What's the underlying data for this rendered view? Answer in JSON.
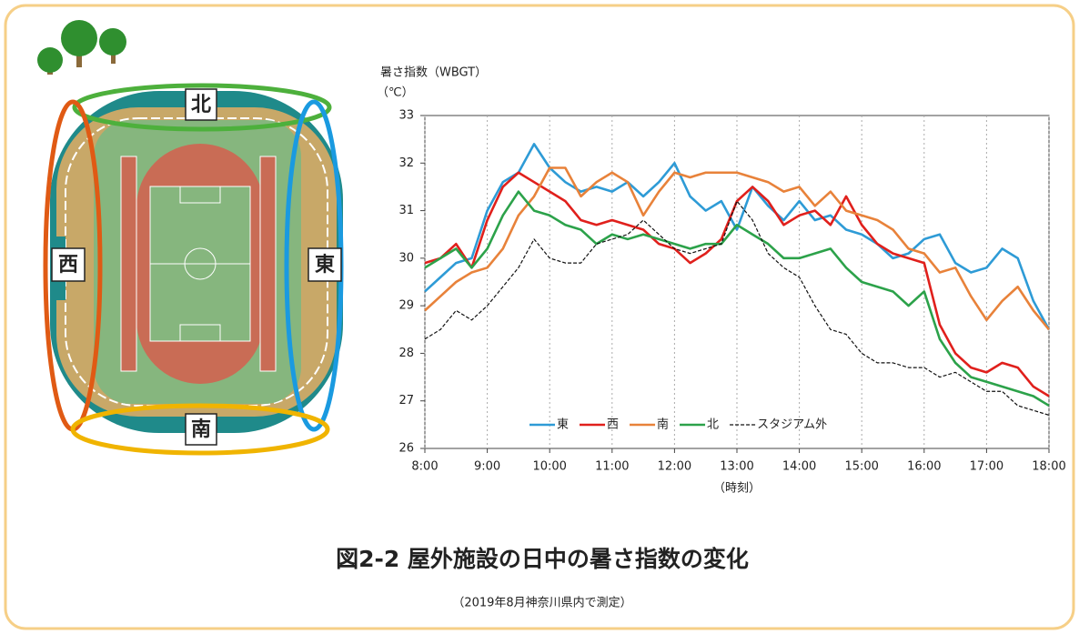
{
  "diagram": {
    "north": "北",
    "west": "西",
    "east": "東",
    "south": "南"
  },
  "chart_data": {
    "type": "line",
    "title": "図2-2  屋外施設の日中の暑さ指数の変化",
    "subtitle": "（2019年8月神奈川県内で測定）",
    "y_label": "暑さ指数（WBGT）",
    "y_unit": "（℃）",
    "x_label": "（時刻）",
    "x": [
      8,
      8.25,
      8.5,
      8.75,
      9,
      9.25,
      9.5,
      9.75,
      10,
      10.25,
      10.5,
      10.75,
      11,
      11.25,
      11.5,
      11.75,
      12,
      12.25,
      12.5,
      12.75,
      13,
      13.25,
      13.5,
      13.75,
      14,
      14.25,
      14.5,
      14.75,
      15,
      15.25,
      15.5,
      15.75,
      16,
      16.25,
      16.5,
      16.75,
      17,
      17.25,
      17.5,
      17.75,
      18
    ],
    "xlim": [
      8,
      18
    ],
    "xticks": [
      {
        "value": 8,
        "label": "8:00"
      },
      {
        "value": 9,
        "label": "9:00"
      },
      {
        "value": 10,
        "label": "10:00"
      },
      {
        "value": 11,
        "label": "11:00"
      },
      {
        "value": 12,
        "label": "12:00"
      },
      {
        "value": 13,
        "label": "13:00"
      },
      {
        "value": 14,
        "label": "14:00"
      },
      {
        "value": 15,
        "label": "15:00"
      },
      {
        "value": 16,
        "label": "16:00"
      },
      {
        "value": 17,
        "label": "17:00"
      },
      {
        "value": 18,
        "label": "18:00"
      }
    ],
    "ylim": [
      26,
      33
    ],
    "yticks": [
      26,
      27,
      28,
      29,
      30,
      31,
      32,
      33
    ],
    "grid": "x",
    "legend": "bottom",
    "series": [
      {
        "name": "東",
        "color": "#2e9bd6",
        "line_style": "solid",
        "values": [
          29.3,
          29.6,
          29.9,
          30.0,
          31.0,
          31.6,
          31.8,
          32.4,
          31.9,
          31.6,
          31.4,
          31.5,
          31.4,
          31.6,
          31.3,
          31.6,
          32.0,
          31.3,
          31.0,
          31.2,
          30.6,
          31.5,
          31.1,
          30.8,
          31.2,
          30.8,
          30.9,
          30.6,
          30.5,
          30.3,
          30.0,
          30.1,
          30.4,
          30.5,
          29.9,
          29.7,
          29.8,
          30.2,
          30.0,
          29.1,
          28.5
        ]
      },
      {
        "name": "西",
        "color": "#e0201c",
        "line_style": "solid",
        "values": [
          29.9,
          30.0,
          30.3,
          29.8,
          30.8,
          31.5,
          31.8,
          31.6,
          31.4,
          31.2,
          30.8,
          30.7,
          30.8,
          30.7,
          30.6,
          30.3,
          30.2,
          29.9,
          30.1,
          30.4,
          31.2,
          31.5,
          31.2,
          30.7,
          30.9,
          31.0,
          30.7,
          31.3,
          30.7,
          30.3,
          30.1,
          30.0,
          29.9,
          28.6,
          28.0,
          27.7,
          27.6,
          27.8,
          27.7,
          27.3,
          27.1
        ]
      },
      {
        "name": "南",
        "color": "#e8823a",
        "line_style": "solid",
        "values": [
          28.9,
          29.2,
          29.5,
          29.7,
          29.8,
          30.2,
          30.9,
          31.3,
          31.9,
          31.9,
          31.3,
          31.6,
          31.8,
          31.6,
          30.9,
          31.4,
          31.8,
          31.7,
          31.8,
          31.8,
          31.8,
          31.7,
          31.6,
          31.4,
          31.5,
          31.1,
          31.4,
          31.0,
          30.9,
          30.8,
          30.6,
          30.2,
          30.1,
          29.7,
          29.8,
          29.2,
          28.7,
          29.1,
          29.4,
          28.9,
          28.5
        ]
      },
      {
        "name": "北",
        "color": "#2ca24a",
        "line_style": "solid",
        "values": [
          29.8,
          30.0,
          30.2,
          29.8,
          30.2,
          30.9,
          31.4,
          31.0,
          30.9,
          30.7,
          30.6,
          30.3,
          30.5,
          30.4,
          30.5,
          30.4,
          30.3,
          30.2,
          30.3,
          30.3,
          30.7,
          30.5,
          30.3,
          30.0,
          30.0,
          30.1,
          30.2,
          29.8,
          29.5,
          29.4,
          29.3,
          29.0,
          29.3,
          28.3,
          27.8,
          27.5,
          27.4,
          27.3,
          27.2,
          27.1,
          26.9
        ]
      },
      {
        "name": "スタジアム外",
        "color": "#111111",
        "line_style": "dashed",
        "values": [
          28.3,
          28.5,
          28.9,
          28.7,
          29.0,
          29.4,
          29.8,
          30.4,
          30.0,
          29.9,
          29.9,
          30.3,
          30.4,
          30.5,
          30.8,
          30.5,
          30.2,
          30.1,
          30.2,
          30.3,
          31.2,
          30.8,
          30.1,
          29.8,
          29.6,
          29.0,
          28.5,
          28.4,
          28.0,
          27.8,
          27.8,
          27.7,
          27.7,
          27.5,
          27.6,
          27.4,
          27.2,
          27.2,
          26.9,
          26.8,
          26.7
        ]
      }
    ]
  }
}
